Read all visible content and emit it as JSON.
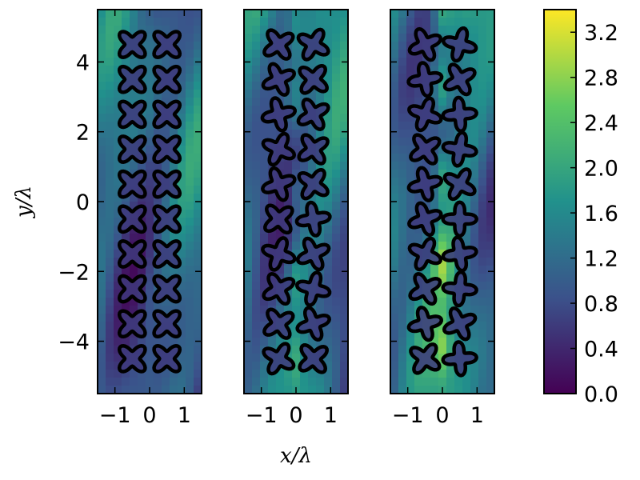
{
  "chart_data": {
    "type": "heatmap",
    "title": "",
    "xlabel": "x/λ",
    "ylabel": "y/λ",
    "colormap": "viridis",
    "colormap_stops": [
      "#440154",
      "#3b528b",
      "#21918c",
      "#5ec962",
      "#fde725"
    ],
    "colorbar": {
      "range": [
        0.0,
        3.4
      ],
      "ticks": [
        0.0,
        0.4,
        0.8,
        1.2,
        1.6,
        2.0,
        2.4,
        2.8,
        3.2
      ],
      "tick_labels": [
        "0.0",
        "0.4",
        "0.8",
        "1.2",
        "1.6",
        "2.0",
        "2.4",
        "2.8",
        "3.2"
      ]
    },
    "xlim": [
      -1.5,
      1.5
    ],
    "ylim": [
      -5.5,
      5.5
    ],
    "x_ticks": [
      -1,
      0,
      1
    ],
    "x_tick_labels": [
      "−1",
      "0",
      "1"
    ],
    "y_ticks": [
      -4,
      -2,
      0,
      2,
      4
    ],
    "y_tick_labels": [
      "−4",
      "−2",
      "0",
      "2",
      "4"
    ],
    "scatterer_columns_x": [
      -0.5,
      0.5
    ],
    "scatterer_rows_y": [
      -4.5,
      -3.5,
      -2.5,
      -1.5,
      -0.5,
      0.5,
      1.5,
      2.5,
      3.5,
      4.5
    ],
    "scatterer_shape": "four-lobed star",
    "scatterer_outline_color": "#000000",
    "panels": [
      {
        "name": "panel-1",
        "rotation_pattern_deg": [
          0,
          0,
          0,
          0,
          0,
          0,
          0,
          0,
          0,
          0,
          0,
          0,
          0,
          0,
          0,
          0,
          0,
          0,
          0,
          0
        ]
      },
      {
        "name": "panel-2",
        "rotation_pattern_deg": [
          10,
          -15,
          20,
          -5,
          30,
          15,
          -20,
          10,
          25,
          -10,
          5,
          35,
          -25,
          20,
          15,
          -30,
          10,
          25,
          -15,
          5
        ]
      },
      {
        "name": "panel-3",
        "rotation_pattern_deg": [
          20,
          -30,
          35,
          15,
          -25,
          40,
          10,
          -35,
          30,
          -15,
          25,
          45,
          -20,
          35,
          15,
          -40,
          30,
          20,
          -10,
          40
        ]
      }
    ]
  }
}
